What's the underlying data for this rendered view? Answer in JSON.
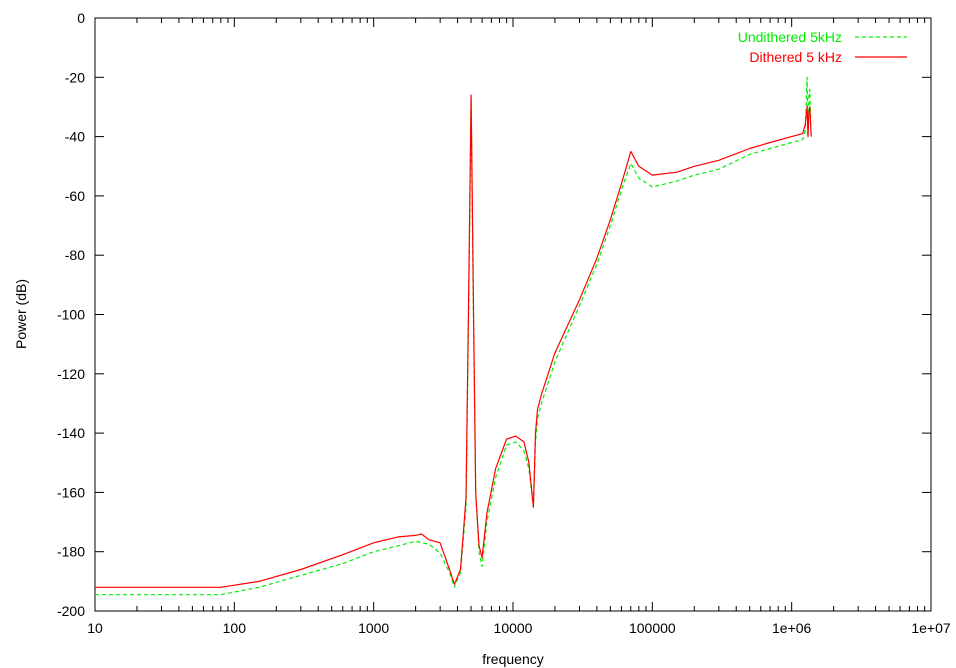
{
  "chart_data": {
    "type": "line",
    "title": "",
    "xlabel": "frequency",
    "ylabel": "Power (dB)",
    "xscale": "log",
    "xlim": [
      10,
      10000000
    ],
    "ylim": [
      -200,
      0
    ],
    "x_ticks": [
      10,
      100,
      1000,
      10000,
      100000,
      1000000,
      10000000
    ],
    "x_tick_labels": [
      "10",
      "100",
      "1000",
      "10000",
      "100000",
      "1e+06",
      "1e+07"
    ],
    "y_ticks": [
      0,
      -20,
      -40,
      -60,
      -80,
      -100,
      -120,
      -140,
      -160,
      -180,
      -200
    ],
    "y_tick_labels": [
      "0",
      "-20",
      "-40",
      "-60",
      "-80",
      "-100",
      "-120",
      "-140",
      "-160",
      "-180",
      "-200"
    ],
    "grid": false,
    "legend_position": "top-right",
    "series": [
      {
        "name": "Undithered 5kHz",
        "color": "#00ee00",
        "dashed": true,
        "x": [
          10,
          80,
          150,
          300,
          600,
          1000,
          1500,
          2000,
          2500,
          3000,
          3500,
          3800,
          4200,
          4600,
          4800,
          5000,
          5200,
          5400,
          5700,
          6000,
          6500,
          7500,
          9000,
          10500,
          12000,
          13000,
          14000,
          14500,
          15000,
          16000,
          20000,
          30000,
          40000,
          50000,
          60000,
          70000,
          80000,
          100000,
          150000,
          200000,
          300000,
          500000,
          700000,
          1000000,
          1200000,
          1250000,
          1290000,
          1310000,
          1330000,
          1350000,
          1380000
        ],
        "y": [
          -194.5,
          -194.5,
          -192,
          -188,
          -184,
          -180,
          -178,
          -176.5,
          -177.5,
          -180.5,
          -187,
          -192,
          -187,
          -165,
          -100,
          -27,
          -100,
          -160,
          -180,
          -185,
          -170,
          -155,
          -144,
          -143,
          -146,
          -152,
          -165,
          -143,
          -135,
          -130,
          -116,
          -97,
          -83,
          -70,
          -58,
          -49,
          -54,
          -57,
          -55,
          -53,
          -51,
          -46,
          -44,
          -42,
          -41,
          -38,
          -20,
          -40,
          -26,
          -24,
          -40
        ]
      },
      {
        "name": "Dithered 5 kHz",
        "color": "#ff0000",
        "dashed": false,
        "x": [
          10,
          80,
          150,
          300,
          600,
          1000,
          1500,
          2000,
          2200,
          2500,
          3000,
          3500,
          3800,
          4200,
          4600,
          4800,
          5000,
          5200,
          5400,
          5700,
          6000,
          6500,
          7500,
          9000,
          10500,
          12000,
          13000,
          14000,
          14500,
          15000,
          16000,
          20000,
          30000,
          40000,
          50000,
          60000,
          70000,
          80000,
          100000,
          150000,
          200000,
          300000,
          500000,
          700000,
          1000000,
          1200000,
          1250000,
          1290000,
          1310000,
          1330000,
          1350000,
          1380000
        ],
        "y": [
          -192,
          -192,
          -190,
          -186,
          -181,
          -177,
          -175,
          -174.5,
          -174,
          -176,
          -177,
          -186,
          -191,
          -186,
          -162,
          -95,
          -26,
          -95,
          -160,
          -178,
          -182,
          -167,
          -152,
          -142,
          -141,
          -143,
          -150,
          -165,
          -140,
          -132,
          -127,
          -113,
          -95,
          -81,
          -68,
          -56,
          -45,
          -50,
          -53,
          -52,
          -50,
          -48,
          -44,
          -42,
          -40,
          -39,
          -36,
          -30,
          -40,
          -32,
          -30,
          -40
        ]
      }
    ]
  }
}
